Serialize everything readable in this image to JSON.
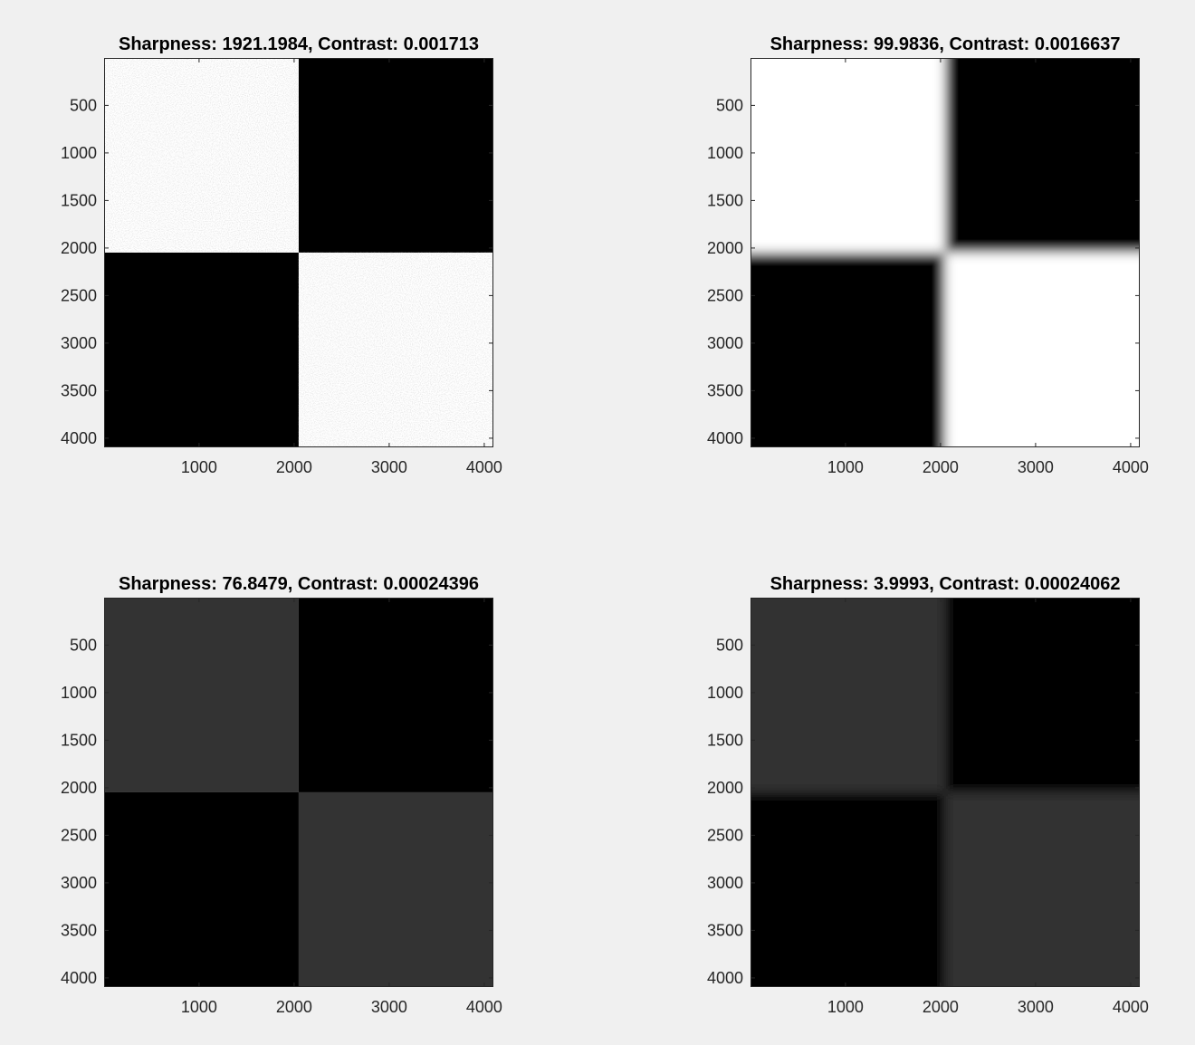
{
  "chart_data": [
    {
      "type": "heatmap",
      "title": "Sharpness: 1921.1984, Contrast: 0.001713",
      "xlim": [
        1,
        4096
      ],
      "ylim": [
        1,
        4096
      ],
      "y_reversed": true,
      "xticks": [
        1000,
        2000,
        3000,
        4000
      ],
      "yticks": [
        500,
        1000,
        1500,
        2000,
        2500,
        3000,
        3500,
        4000
      ],
      "split": 2048,
      "blur": false,
      "noise": true,
      "quadrants": {
        "top_left": "#ffffff",
        "top_right": "#000000",
        "bottom_left": "#000000",
        "bottom_right": "#ffffff"
      }
    },
    {
      "type": "heatmap",
      "title": "Sharpness: 99.9836, Contrast: 0.0016637",
      "xlim": [
        1,
        4096
      ],
      "ylim": [
        1,
        4096
      ],
      "y_reversed": true,
      "xticks": [
        1000,
        2000,
        3000,
        4000
      ],
      "yticks": [
        500,
        1000,
        1500,
        2000,
        2500,
        3000,
        3500,
        4000
      ],
      "split": 2048,
      "blur": true,
      "noise": false,
      "quadrants": {
        "top_left": "#ffffff",
        "top_right": "#000000",
        "bottom_left": "#000000",
        "bottom_right": "#ffffff"
      }
    },
    {
      "type": "heatmap",
      "title": "Sharpness: 76.8479, Contrast: 0.00024396",
      "xlim": [
        1,
        4096
      ],
      "ylim": [
        1,
        4096
      ],
      "y_reversed": true,
      "xticks": [
        1000,
        2000,
        3000,
        4000
      ],
      "yticks": [
        500,
        1000,
        1500,
        2000,
        2500,
        3000,
        3500,
        4000
      ],
      "split": 2048,
      "blur": false,
      "noise": false,
      "quadrants": {
        "top_left": "#333333",
        "top_right": "#000000",
        "bottom_left": "#000000",
        "bottom_right": "#333333"
      }
    },
    {
      "type": "heatmap",
      "title": "Sharpness: 3.9993, Contrast: 0.00024062",
      "xlim": [
        1,
        4096
      ],
      "ylim": [
        1,
        4096
      ],
      "y_reversed": true,
      "xticks": [
        1000,
        2000,
        3000,
        4000
      ],
      "yticks": [
        500,
        1000,
        1500,
        2000,
        2500,
        3000,
        3500,
        4000
      ],
      "split": 2048,
      "blur": true,
      "noise": false,
      "quadrants": {
        "top_left": "#333333",
        "top_right": "#000000",
        "bottom_left": "#000000",
        "bottom_right": "#333333"
      }
    }
  ]
}
